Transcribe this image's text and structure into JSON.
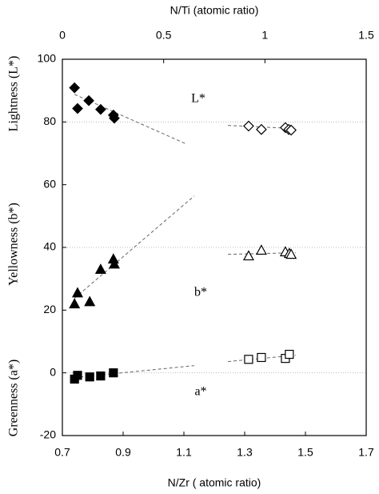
{
  "chart_data": {
    "type": "scatter",
    "xlabel": "N/Zr ( atomic ratio)",
    "x2label": "N/Ti (atomic ratio)",
    "ylabels": [
      "Lightness (L*)",
      "Yellowness  (b*)",
      "Greenness (a*)"
    ],
    "annotations": [
      "L*",
      "b*",
      "a*"
    ],
    "xlim": [
      0.7,
      1.7
    ],
    "xticks": [
      0.7,
      0.9,
      1.1,
      1.3,
      1.5,
      1.7
    ],
    "x2lim": [
      0,
      1.5
    ],
    "x2ticks": [
      0,
      0.5,
      1,
      1.5
    ],
    "ylim": [
      -20,
      100
    ],
    "yticks": [
      -20,
      0,
      20,
      40,
      60,
      80,
      100
    ],
    "grid_values": [
      0,
      40,
      80
    ],
    "series": [
      {
        "marker": "diamond",
        "filled": true,
        "color": "#000000",
        "x": [
          0.74,
          0.75,
          0.787,
          0.826,
          0.868,
          0.871
        ],
        "values": [
          90.9,
          84.3,
          86.8,
          84.0,
          82.2,
          81.2
        ],
        "trend": {
          "x": [
            0.74,
            1.105
          ],
          "values": [
            88.8,
            73.1
          ]
        }
      },
      {
        "marker": "diamond",
        "filled": false,
        "color": "#000000",
        "x": [
          1.313,
          1.355,
          1.434,
          1.445,
          1.453
        ],
        "values": [
          78.7,
          77.6,
          78.2,
          77.6,
          77.4
        ],
        "trend": {
          "x": [
            1.245,
            1.463
          ],
          "values": [
            78.9,
            77.9
          ]
        }
      },
      {
        "marker": "triangle",
        "filled": true,
        "color": "#000000",
        "x": [
          0.74,
          0.75,
          0.79,
          0.826,
          0.868,
          0.871
        ],
        "values": [
          22.0,
          25.5,
          22.7,
          33.0,
          36.3,
          34.7
        ],
        "trend": {
          "x": [
            0.74,
            1.134
          ],
          "values": [
            23.8,
            56.4
          ]
        }
      },
      {
        "marker": "triangle",
        "filled": false,
        "color": "#000000",
        "x": [
          1.313,
          1.355,
          1.434,
          1.447,
          1.453
        ],
        "values": [
          37.3,
          39.1,
          38.6,
          38.1,
          37.8
        ],
        "trend": {
          "x": [
            1.245,
            1.468
          ],
          "values": [
            37.8,
            38.3
          ]
        }
      },
      {
        "marker": "square",
        "filled": true,
        "color": "#000000",
        "x": [
          0.74,
          0.75,
          0.79,
          0.826,
          0.868
        ],
        "values": [
          -2.0,
          -0.8,
          -1.3,
          -1.0,
          0.0
        ],
        "trend": {
          "x": [
            0.74,
            1.134
          ],
          "values": [
            -1.5,
            2.3
          ]
        }
      },
      {
        "marker": "square",
        "filled": false,
        "color": "#000000",
        "x": [
          1.313,
          1.355,
          1.434,
          1.447
        ],
        "values": [
          4.3,
          4.9,
          4.6,
          5.9
        ],
        "trend": {
          "x": [
            1.245,
            1.468
          ],
          "values": [
            3.6,
            5.6
          ]
        }
      }
    ]
  }
}
